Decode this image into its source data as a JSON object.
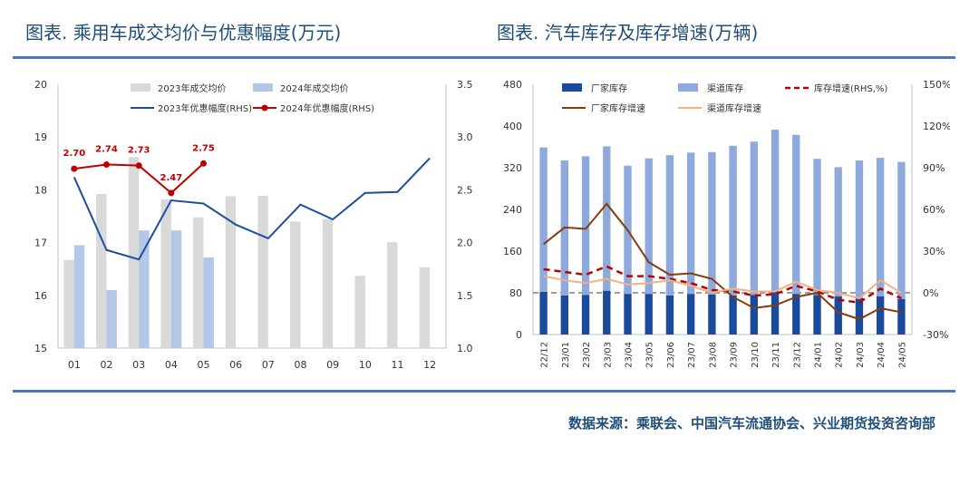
{
  "left_title": "图表.  乘用车成交均价与优惠幅度(万元)",
  "right_title": "图表.  汽车库存及库存增速(万辆)",
  "source": "数据来源：乘联会、中国汽车流通协会、兴业期货投资咨询部",
  "colors": {
    "accent": "#1f4e79",
    "rule": "#4a7ab7"
  },
  "chart_data": [
    {
      "type": "bar",
      "categories": [
        "01",
        "02",
        "03",
        "04",
        "05",
        "06",
        "07",
        "08",
        "09",
        "10",
        "11",
        "12"
      ],
      "ylim": [
        15,
        20
      ],
      "yticks": [
        "15",
        "16",
        "17",
        "18",
        "19",
        "20"
      ],
      "y2lim": [
        1.0,
        3.5
      ],
      "y2ticks": [
        "1.0",
        "1.5",
        "2.0",
        "2.5",
        "3.0",
        "3.5"
      ],
      "legend_placement": "top",
      "series": [
        {
          "name": "2023年成交均价",
          "kind": "bar",
          "axis": "left",
          "color": "#d9d9d9",
          "values": [
            16.67,
            17.92,
            18.62,
            17.82,
            17.48,
            17.88,
            17.89,
            17.4,
            17.45,
            16.37,
            17.01,
            16.53
          ]
        },
        {
          "name": "2024年成交均价",
          "kind": "bar",
          "axis": "left",
          "color": "#b4c7e7",
          "values": [
            16.95,
            16.1,
            17.23,
            17.23,
            16.72,
            null,
            null,
            null,
            null,
            null,
            null,
            null
          ]
        },
        {
          "name": "2023年优惠幅度(RHS)",
          "kind": "line",
          "axis": "right",
          "color": "#1f4e9c",
          "values": [
            2.62,
            1.93,
            1.84,
            2.4,
            2.37,
            2.17,
            2.04,
            2.36,
            2.22,
            2.47,
            2.48,
            2.8
          ]
        },
        {
          "name": "2024年优惠幅度(RHS)",
          "kind": "line-marker",
          "axis": "right",
          "color": "#c00000",
          "values": [
            2.7,
            2.74,
            2.73,
            2.47,
            2.75,
            null,
            null,
            null,
            null,
            null,
            null,
            null
          ],
          "labels": [
            "2.70",
            "2.74",
            "2.73",
            "2.47",
            "2.75"
          ]
        }
      ]
    },
    {
      "type": "bar",
      "categories": [
        "22/12",
        "23/01",
        "23/02",
        "23/03",
        "23/04",
        "23/05",
        "23/06",
        "23/07",
        "23/08",
        "23/09",
        "23/10",
        "23/11",
        "23/12",
        "24/01",
        "24/02",
        "24/03",
        "24/04",
        "24/05"
      ],
      "ylim": [
        0,
        480
      ],
      "yticks": [
        "0",
        "80",
        "160",
        "240",
        "320",
        "400",
        "480"
      ],
      "y2lim": [
        -30,
        150
      ],
      "y2ticks": [
        "-30%",
        "0%",
        "30%",
        "60%",
        "90%",
        "120%",
        "150%"
      ],
      "legend_placement": "top",
      "series": [
        {
          "name": "厂家库存",
          "kind": "bar-stack",
          "axis": "left",
          "color": "#1a4a9c",
          "values": [
            82,
            75,
            76,
            84,
            78,
            78,
            75,
            78,
            77,
            75,
            76,
            83,
            78,
            76,
            73,
            70,
            73,
            68
          ]
        },
        {
          "name": "渠道库存",
          "kind": "bar-stack",
          "axis": "left",
          "color": "#8ea9db",
          "values": [
            277,
            259,
            266,
            277,
            246,
            260,
            269,
            271,
            273,
            287,
            294,
            310,
            305,
            261,
            248,
            264,
            266,
            263
          ]
        },
        {
          "name": "库存增速(RHS,%)",
          "kind": "line-dash",
          "axis": "right",
          "color": "#c00000",
          "values": [
            17,
            15,
            13,
            19,
            12,
            12,
            10,
            7,
            2,
            1,
            -2,
            -1,
            5,
            1,
            -5,
            -7,
            3,
            -4
          ]
        },
        {
          "name": "厂家库存增速",
          "kind": "line",
          "axis": "right",
          "color": "#843c0c",
          "values": [
            35,
            47,
            46,
            64,
            45,
            22,
            13,
            14,
            10,
            -3,
            -11,
            -9,
            -3,
            0,
            -14,
            -19,
            -11,
            -14
          ]
        },
        {
          "name": "渠道库存增速",
          "kind": "line",
          "axis": "right",
          "color": "#f4b183",
          "values": [
            12,
            9,
            7,
            10,
            6,
            7,
            9,
            5,
            0,
            3,
            1,
            1,
            8,
            2,
            0,
            -4,
            9,
            0
          ]
        }
      ],
      "reference_line": {
        "value": 80,
        "axis": "left",
        "color": "#7f7f7f"
      }
    }
  ]
}
